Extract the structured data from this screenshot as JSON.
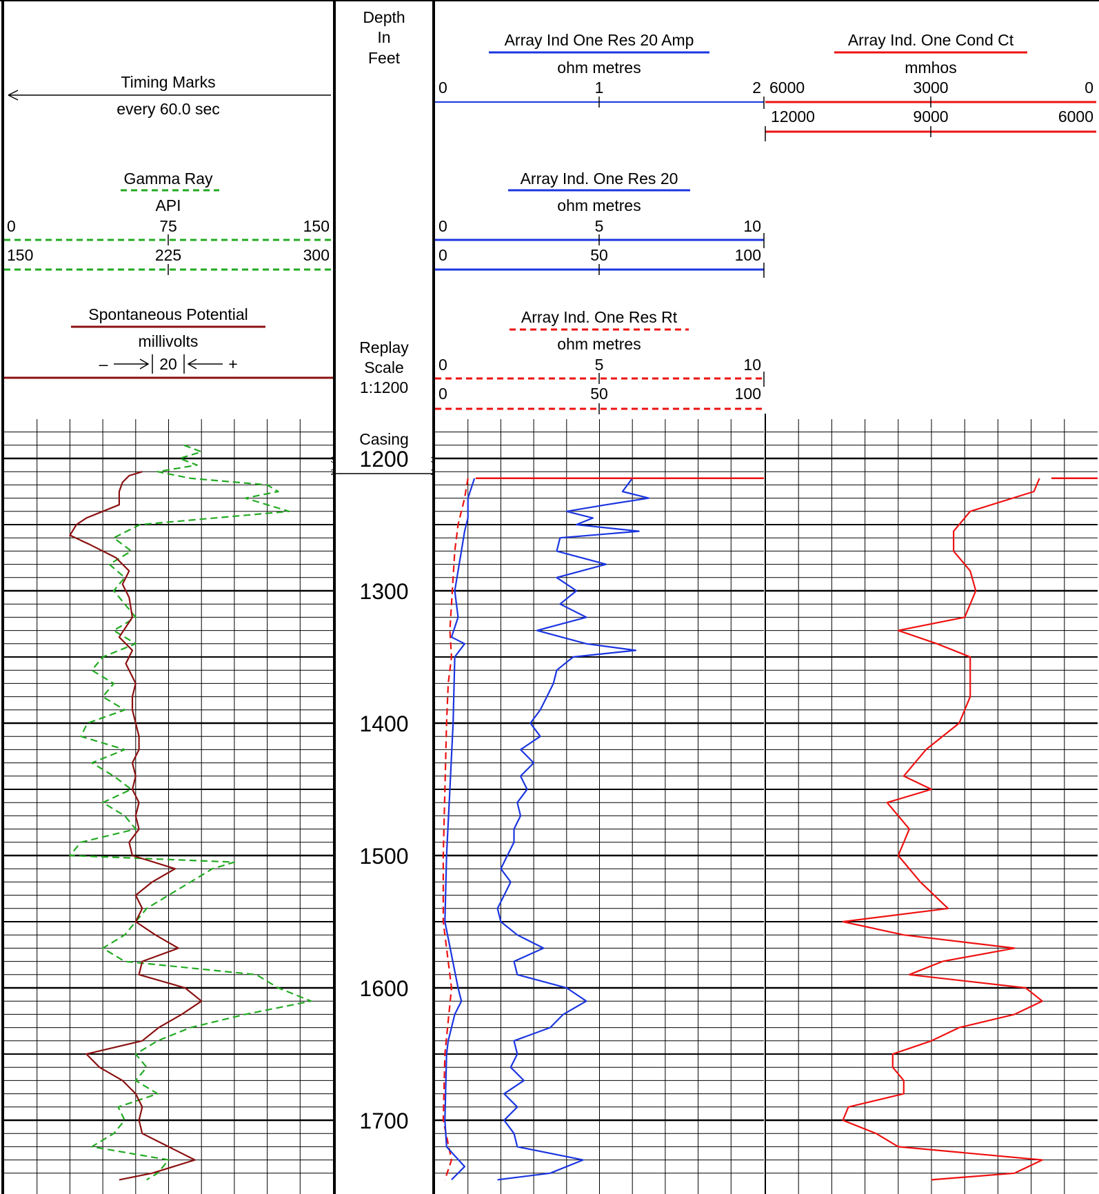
{
  "header": {
    "depth": {
      "line1": "Depth",
      "line2": "In",
      "line3": "Feet"
    },
    "replay": {
      "line1": "Replay",
      "line2": "Scale",
      "line3": "1:1200"
    },
    "casing": "Casing",
    "timing": {
      "title": "Timing Marks",
      "sub": "every 60.0 sec"
    },
    "gamma": {
      "title": "Gamma Ray",
      "unit": "API",
      "scale1": [
        "0",
        "75",
        "150"
      ],
      "scale2": [
        "150",
        "225",
        "300"
      ]
    },
    "sp": {
      "title": "Spontaneous Potential",
      "unit": "millivolts",
      "scale_left": "–",
      "scale_mid": "20",
      "scale_right": "+"
    },
    "amp": {
      "title": "Array Ind One Res 20 Amp",
      "unit": "ohm metres",
      "scale": [
        "0",
        "1",
        "2"
      ]
    },
    "cond": {
      "title": "Array Ind. One Cond Ct",
      "unit": "mmhos",
      "scale1": [
        "6000",
        "3000",
        "0"
      ],
      "scale2": [
        "12000",
        "9000",
        "6000"
      ]
    },
    "res20": {
      "title": "Array Ind. One Res 20",
      "unit": "ohm metres",
      "scale1": [
        "0",
        "5",
        "10"
      ],
      "scale2": [
        "0",
        "50",
        "100"
      ]
    },
    "rt": {
      "title": "Array Ind. One Res Rt",
      "unit": "ohm metres",
      "scale1": [
        "0",
        "5",
        "10"
      ],
      "scale2": [
        "0",
        "50",
        "100"
      ]
    }
  },
  "depth_labels": [
    "1200",
    "1300",
    "1400",
    "1500",
    "1600",
    "1700"
  ],
  "pass_marks": {
    "upper": "3",
    "lower": "2"
  },
  "colors": {
    "gamma": "#22aa22",
    "sp": "#8b1010",
    "res20": "#1a35e0",
    "rt": "#ee1111",
    "cond": "#ee1111",
    "amp": "#1a35e0",
    "grid": "#000000"
  },
  "chart_data": {
    "type": "line",
    "y_axis": {
      "label": "Depth In Feet",
      "range": [
        1170,
        1745
      ],
      "inverted": true
    },
    "series": [
      {
        "name": "Gamma Ray",
        "unit": "API",
        "scale": [
          0,
          150
        ],
        "style": "dashed",
        "depth": [
          1190,
          1195,
          1200,
          1205,
          1210,
          1215,
          1220,
          1225,
          1230,
          1235,
          1240,
          1250,
          1260,
          1270,
          1280,
          1290,
          1300,
          1310,
          1320,
          1330,
          1340,
          1350,
          1360,
          1370,
          1380,
          1390,
          1400,
          1410,
          1420,
          1430,
          1440,
          1450,
          1460,
          1470,
          1480,
          1490,
          1500,
          1505,
          1510,
          1520,
          1530,
          1540,
          1550,
          1560,
          1570,
          1580,
          1590,
          1600,
          1610,
          1620,
          1630,
          1640,
          1650,
          1660,
          1670,
          1680,
          1690,
          1700,
          1710,
          1720,
          1730,
          1740,
          1745
        ],
        "values": [
          82,
          90,
          80,
          88,
          70,
          85,
          120,
          125,
          110,
          120,
          130,
          62,
          50,
          58,
          48,
          55,
          50,
          55,
          60,
          50,
          60,
          45,
          40,
          50,
          45,
          55,
          38,
          35,
          55,
          40,
          50,
          58,
          45,
          55,
          60,
          35,
          30,
          105,
          95,
          85,
          75,
          65,
          60,
          55,
          45,
          55,
          115,
          125,
          140,
          110,
          85,
          70,
          60,
          65,
          60,
          70,
          52,
          55,
          50,
          40,
          75,
          70,
          65
        ]
      },
      {
        "name": "Spontaneous Potential",
        "unit": "millivolts",
        "style": "solid",
        "depth": [
          1210,
          1213,
          1218,
          1225,
          1235,
          1245,
          1250,
          1258,
          1265,
          1275,
          1285,
          1295,
          1305,
          1320,
          1335,
          1345,
          1355,
          1370,
          1380,
          1390,
          1400,
          1410,
          1420,
          1430,
          1440,
          1450,
          1460,
          1470,
          1480,
          1490,
          1500,
          1510,
          1520,
          1530,
          1540,
          1550,
          1560,
          1570,
          1580,
          1590,
          1600,
          1610,
          1620,
          1630,
          1640,
          1650,
          1660,
          1670,
          1680,
          1690,
          1700,
          1710,
          1720,
          1730,
          1740,
          1745
        ],
        "values": [
          0.42,
          0.38,
          0.36,
          0.35,
          0.35,
          0.25,
          0.22,
          0.2,
          0.26,
          0.34,
          0.38,
          0.36,
          0.38,
          0.39,
          0.35,
          0.39,
          0.37,
          0.4,
          0.39,
          0.39,
          0.4,
          0.41,
          0.41,
          0.39,
          0.4,
          0.39,
          0.41,
          0.4,
          0.41,
          0.38,
          0.39,
          0.52,
          0.45,
          0.4,
          0.42,
          0.4,
          0.46,
          0.53,
          0.42,
          0.41,
          0.55,
          0.6,
          0.54,
          0.47,
          0.42,
          0.25,
          0.29,
          0.36,
          0.4,
          0.42,
          0.41,
          0.42,
          0.5,
          0.58,
          0.45,
          0.35
        ]
      },
      {
        "name": "Array Ind. One Res Rt",
        "unit": "ohm metres",
        "scale": [
          0,
          10
        ],
        "style": "dashed",
        "depth": [
          1215,
          1230,
          1250,
          1270,
          1290,
          1310,
          1330,
          1350,
          1370,
          1400,
          1450,
          1500,
          1550,
          1600,
          1650,
          1700,
          1730,
          1745
        ],
        "values": [
          1.0,
          0.9,
          0.7,
          0.6,
          0.55,
          0.5,
          0.45,
          0.5,
          0.4,
          0.35,
          0.3,
          0.25,
          0.25,
          0.5,
          0.3,
          0.25,
          0.5,
          0.3
        ]
      },
      {
        "name": "Array Ind. One Res 20",
        "unit": "ohm metres",
        "scale": [
          0,
          10
        ],
        "style": "solid",
        "depth": [
          1215,
          1230,
          1245,
          1255,
          1270,
          1300,
          1320,
          1335,
          1340,
          1350,
          1400,
          1450,
          1500,
          1550,
          1600,
          1610,
          1620,
          1640,
          1650,
          1700,
          1720,
          1735,
          1745
        ],
        "values": [
          1.2,
          1.0,
          1.0,
          0.9,
          0.8,
          0.6,
          0.7,
          0.5,
          0.9,
          0.6,
          0.55,
          0.45,
          0.35,
          0.3,
          0.7,
          0.8,
          0.6,
          0.4,
          0.35,
          0.3,
          0.35,
          0.9,
          0.5
        ]
      },
      {
        "name": "Array Ind Ones Res 20 Amp trace",
        "unit": "ohm metres",
        "scale": [
          0,
          10
        ],
        "style": "solid",
        "depth": [
          1215,
          1225,
          1230,
          1235,
          1240,
          1245,
          1250,
          1255,
          1260,
          1270,
          1280,
          1290,
          1300,
          1310,
          1320,
          1330,
          1340,
          1345,
          1350,
          1360,
          1370,
          1380,
          1390,
          1400,
          1410,
          1420,
          1430,
          1440,
          1450,
          1460,
          1470,
          1480,
          1490,
          1500,
          1510,
          1520,
          1530,
          1540,
          1550,
          1560,
          1570,
          1580,
          1590,
          1600,
          1610,
          1620,
          1630,
          1640,
          1650,
          1660,
          1670,
          1680,
          1690,
          1700,
          1710,
          1720,
          1730,
          1740,
          1745
        ],
        "values": [
          6.0,
          5.7,
          6.5,
          5.2,
          4.0,
          4.8,
          4.3,
          6.2,
          3.8,
          3.7,
          5.2,
          3.7,
          4.3,
          3.8,
          4.6,
          3.1,
          4.6,
          6.1,
          4.2,
          3.7,
          3.6,
          3.4,
          3.2,
          2.9,
          3.2,
          2.6,
          3.0,
          2.6,
          2.8,
          2.5,
          2.6,
          2.4,
          2.4,
          2.2,
          2.0,
          2.3,
          2.1,
          1.9,
          2.0,
          2.5,
          3.3,
          2.4,
          2.5,
          4.0,
          4.6,
          3.9,
          3.5,
          2.4,
          2.5,
          2.3,
          2.7,
          2.1,
          2.5,
          2.1,
          2.4,
          2.5,
          4.5,
          3.5,
          1.9
        ]
      },
      {
        "name": "Array Ind. One Cond Ct",
        "unit": "mmhos",
        "scale": [
          6000,
          0
        ],
        "style": "solid",
        "depth": [
          1215,
          1225,
          1240,
          1255,
          1270,
          1285,
          1300,
          1320,
          1330,
          1340,
          1350,
          1360,
          1380,
          1400,
          1420,
          1440,
          1450,
          1460,
          1480,
          1500,
          1520,
          1540,
          1550,
          1560,
          1570,
          1580,
          1590,
          1600,
          1610,
          1620,
          1630,
          1640,
          1650,
          1660,
          1670,
          1680,
          1690,
          1700,
          1710,
          1720,
          1730,
          1740,
          1745
        ],
        "values": [
          1050,
          1150,
          2300,
          2600,
          2600,
          2300,
          2200,
          2400,
          3600,
          2900,
          2300,
          2300,
          2300,
          2500,
          3100,
          3500,
          3000,
          3800,
          3400,
          3600,
          3200,
          2700,
          4600,
          3500,
          1500,
          2800,
          3400,
          1300,
          1000,
          1500,
          2500,
          3000,
          3700,
          3700,
          3500,
          3500,
          4500,
          4600,
          4000,
          3600,
          1000,
          1500,
          3000
        ]
      }
    ]
  }
}
